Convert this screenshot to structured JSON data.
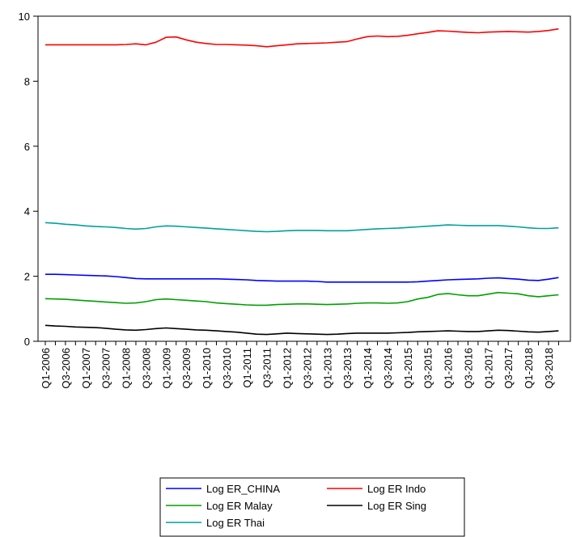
{
  "chart_data": {
    "type": "line",
    "title": "",
    "xlabel": "",
    "ylabel": "",
    "ylim": [
      0,
      10
    ],
    "yticks": [
      0,
      2,
      4,
      6,
      8,
      10
    ],
    "grid": false,
    "legend_position": "bottom-center",
    "x": [
      "Q1-2006",
      "Q2-2006",
      "Q3-2006",
      "Q4-2006",
      "Q1-2007",
      "Q2-2007",
      "Q3-2007",
      "Q4-2007",
      "Q1-2008",
      "Q2-2008",
      "Q3-2008",
      "Q4-2008",
      "Q1-2009",
      "Q2-2009",
      "Q3-2009",
      "Q4-2009",
      "Q1-2010",
      "Q2-2010",
      "Q3-2010",
      "Q4-2010",
      "Q1-2011",
      "Q2-2011",
      "Q3-2011",
      "Q4-2011",
      "Q1-2012",
      "Q2-2012",
      "Q3-2012",
      "Q4-2012",
      "Q1-2013",
      "Q2-2013",
      "Q3-2013",
      "Q4-2013",
      "Q1-2014",
      "Q2-2014",
      "Q3-2014",
      "Q4-2014",
      "Q1-2015",
      "Q2-2015",
      "Q3-2015",
      "Q4-2015",
      "Q1-2016",
      "Q2-2016",
      "Q3-2016",
      "Q4-2016",
      "Q1-2017",
      "Q2-2017",
      "Q3-2017",
      "Q4-2017",
      "Q1-2018",
      "Q2-2018",
      "Q3-2018",
      "Q4-2018"
    ],
    "x_tick_labels": [
      "Q1-2006",
      "Q3-2006",
      "Q1-2007",
      "Q3-2007",
      "Q1-2008",
      "Q3-2008",
      "Q1-2009",
      "Q3-2009",
      "Q1-2010",
      "Q3-2010",
      "Q1-2011",
      "Q3-2011",
      "Q1-2012",
      "Q3-2012",
      "Q1-2013",
      "Q3-2013",
      "Q1-2014",
      "Q3-2014",
      "Q1-2015",
      "Q3-2015",
      "Q1-2016",
      "Q3-2016",
      "Q1-2017",
      "Q3-2017",
      "Q1-2018",
      "Q3-2018"
    ],
    "series": [
      {
        "name": "Log ER_CHINA",
        "color": "#0000ff",
        "values": [
          2.06,
          2.06,
          2.05,
          2.04,
          2.03,
          2.02,
          2.01,
          1.99,
          1.96,
          1.93,
          1.92,
          1.92,
          1.92,
          1.92,
          1.92,
          1.92,
          1.92,
          1.92,
          1.91,
          1.9,
          1.89,
          1.87,
          1.86,
          1.85,
          1.85,
          1.85,
          1.85,
          1.84,
          1.82,
          1.82,
          1.82,
          1.82,
          1.82,
          1.82,
          1.82,
          1.82,
          1.82,
          1.83,
          1.85,
          1.87,
          1.89,
          1.9,
          1.91,
          1.92,
          1.94,
          1.95,
          1.93,
          1.91,
          1.88,
          1.87,
          1.91,
          1.96
        ]
      },
      {
        "name": "Log ER Indo",
        "color": "#ff0000",
        "values": [
          9.12,
          9.12,
          9.12,
          9.12,
          9.12,
          9.12,
          9.12,
          9.12,
          9.13,
          9.15,
          9.12,
          9.2,
          9.35,
          9.36,
          9.27,
          9.2,
          9.16,
          9.13,
          9.13,
          9.12,
          9.11,
          9.09,
          9.06,
          9.09,
          9.12,
          9.15,
          9.16,
          9.17,
          9.18,
          9.2,
          9.22,
          9.3,
          9.37,
          9.39,
          9.37,
          9.38,
          9.41,
          9.46,
          9.5,
          9.55,
          9.54,
          9.52,
          9.5,
          9.49,
          9.51,
          9.52,
          9.53,
          9.52,
          9.51,
          9.53,
          9.56,
          9.61
        ]
      },
      {
        "name": "Log ER Malay",
        "color": "#00a000",
        "values": [
          1.31,
          1.3,
          1.29,
          1.27,
          1.25,
          1.23,
          1.21,
          1.19,
          1.17,
          1.18,
          1.22,
          1.28,
          1.3,
          1.28,
          1.26,
          1.24,
          1.22,
          1.18,
          1.16,
          1.14,
          1.12,
          1.11,
          1.11,
          1.13,
          1.14,
          1.15,
          1.15,
          1.14,
          1.13,
          1.14,
          1.15,
          1.17,
          1.18,
          1.18,
          1.17,
          1.18,
          1.22,
          1.3,
          1.35,
          1.44,
          1.47,
          1.43,
          1.4,
          1.4,
          1.45,
          1.5,
          1.48,
          1.46,
          1.4,
          1.37,
          1.4,
          1.43
        ]
      },
      {
        "name": "Log ER Sing",
        "color": "#000000",
        "values": [
          0.49,
          0.47,
          0.46,
          0.44,
          0.43,
          0.42,
          0.4,
          0.37,
          0.35,
          0.34,
          0.36,
          0.39,
          0.41,
          0.39,
          0.37,
          0.35,
          0.34,
          0.32,
          0.3,
          0.28,
          0.25,
          0.22,
          0.21,
          0.23,
          0.25,
          0.24,
          0.23,
          0.22,
          0.21,
          0.22,
          0.24,
          0.25,
          0.25,
          0.25,
          0.25,
          0.26,
          0.27,
          0.29,
          0.3,
          0.31,
          0.32,
          0.31,
          0.3,
          0.3,
          0.32,
          0.34,
          0.33,
          0.31,
          0.29,
          0.28,
          0.3,
          0.32
        ]
      },
      {
        "name": "Log ER Thai",
        "color": "#00a0a0",
        "values": [
          3.65,
          3.63,
          3.6,
          3.58,
          3.55,
          3.53,
          3.52,
          3.5,
          3.47,
          3.45,
          3.47,
          3.52,
          3.55,
          3.54,
          3.52,
          3.5,
          3.48,
          3.46,
          3.44,
          3.42,
          3.4,
          3.38,
          3.37,
          3.38,
          3.4,
          3.41,
          3.41,
          3.41,
          3.4,
          3.4,
          3.4,
          3.42,
          3.44,
          3.46,
          3.47,
          3.48,
          3.5,
          3.52,
          3.54,
          3.56,
          3.58,
          3.57,
          3.56,
          3.56,
          3.56,
          3.56,
          3.54,
          3.52,
          3.49,
          3.47,
          3.47,
          3.49
        ]
      }
    ]
  }
}
